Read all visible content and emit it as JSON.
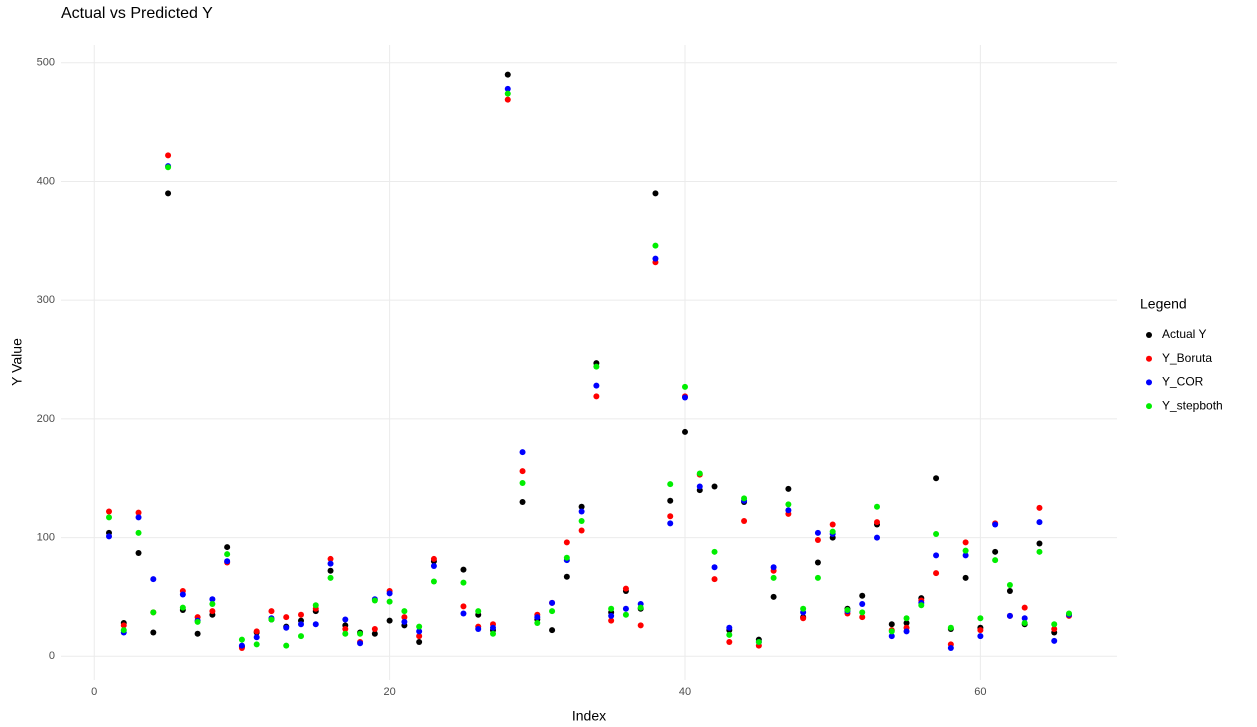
{
  "chart_data": {
    "type": "scatter",
    "title": "Actual vs Predicted Y",
    "xlabel": "Index",
    "ylabel": "Y Value",
    "legend_title": "Legend",
    "legend": "right",
    "grid": true,
    "x": [
      1,
      2,
      3,
      4,
      5,
      6,
      7,
      8,
      9,
      10,
      11,
      12,
      13,
      14,
      15,
      16,
      17,
      18,
      19,
      20,
      21,
      22,
      23,
      25,
      26,
      27,
      28,
      29,
      30,
      31,
      32,
      33,
      34,
      35,
      36,
      37,
      38,
      39,
      40,
      41,
      42,
      43,
      44,
      45,
      46,
      47,
      48,
      49,
      50,
      51,
      52,
      53,
      54,
      55,
      56,
      57,
      58,
      59,
      60,
      61,
      62,
      63,
      64,
      65,
      66
    ],
    "series": [
      {
        "name": "Actual Y",
        "color": "#000000",
        "values": [
          104,
          28,
          87,
          20,
          390,
          39,
          19,
          35,
          92,
          8,
          20,
          31,
          25,
          30,
          38,
          72,
          26,
          20,
          19,
          30,
          26,
          12,
          80,
          73,
          35,
          22,
          490,
          130,
          31,
          22,
          67,
          126,
          247,
          37,
          55,
          40,
          390,
          131,
          189,
          140,
          143,
          22,
          130,
          14,
          50,
          141,
          33,
          79,
          100,
          40,
          51,
          111,
          27,
          28,
          49,
          150,
          23,
          66,
          24,
          88,
          55,
          27,
          95,
          20,
          35
        ]
      },
      {
        "name": "Y_Boruta",
        "color": "#ff0000",
        "values": [
          122,
          26,
          121,
          37,
          422,
          55,
          33,
          38,
          79,
          7,
          21,
          38,
          33,
          35,
          40,
          82,
          23,
          12,
          23,
          55,
          33,
          17,
          82,
          42,
          25,
          27,
          469,
          156,
          35,
          45,
          96,
          106,
          219,
          30,
          57,
          26,
          332,
          118,
          219,
          153,
          65,
          12,
          114,
          9,
          72,
          120,
          32,
          98,
          111,
          36,
          33,
          113,
          22,
          24,
          47,
          70,
          10,
          96,
          22,
          112,
          34,
          41,
          125,
          23,
          34
        ]
      },
      {
        "name": "Y_COR",
        "color": "#0000ff",
        "values": [
          101,
          20,
          117,
          65,
          413,
          52,
          30,
          48,
          80,
          9,
          16,
          32,
          24,
          27,
          27,
          78,
          31,
          11,
          48,
          53,
          29,
          21,
          76,
          36,
          23,
          24,
          478,
          172,
          33,
          45,
          81,
          122,
          228,
          34,
          40,
          44,
          335,
          112,
          218,
          143,
          75,
          24,
          131,
          12,
          75,
          123,
          37,
          104,
          103,
          38,
          44,
          100,
          17,
          21,
          45,
          85,
          7,
          85,
          17,
          111,
          34,
          32,
          113,
          13,
          35
        ]
      },
      {
        "name": "Y_stepboth",
        "color": "#00ee00",
        "values": [
          117,
          22,
          104,
          37,
          412,
          41,
          29,
          44,
          86,
          14,
          10,
          31,
          9,
          17,
          43,
          66,
          19,
          19,
          47,
          46,
          38,
          25,
          63,
          62,
          38,
          19,
          474,
          146,
          28,
          38,
          83,
          114,
          244,
          40,
          35,
          41,
          346,
          145,
          227,
          154,
          88,
          18,
          133,
          12,
          66,
          128,
          40,
          66,
          105,
          39,
          37,
          126,
          21,
          32,
          43,
          103,
          24,
          89,
          32,
          81,
          60,
          28,
          88,
          27,
          36
        ]
      }
    ],
    "xlim": [
      -2.25,
      69.25
    ],
    "ylim": [
      -20,
      515
    ],
    "xticks": [
      0,
      20,
      40,
      60
    ],
    "yticks": [
      0,
      100,
      200,
      300,
      400,
      500
    ]
  }
}
